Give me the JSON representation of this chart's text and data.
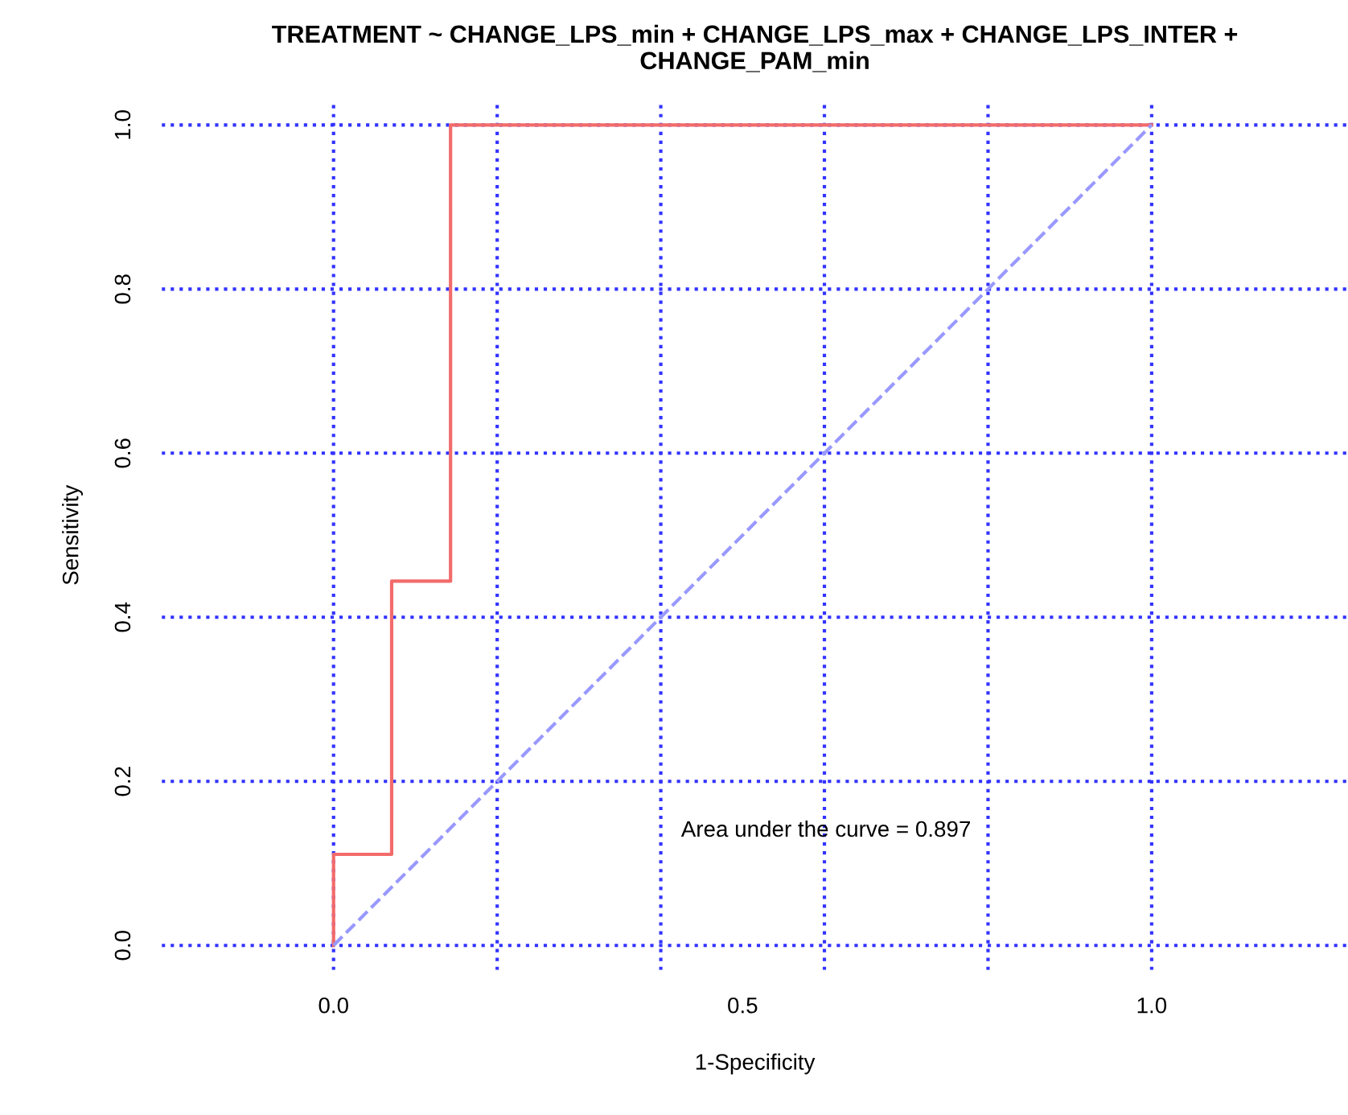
{
  "chart_data": {
    "type": "line",
    "title": "TREATMENT ~ CHANGE_LPS_min + CHANGE_LPS_max + CHANGE_LPS_INTER +\nCHANGE_PAM_min",
    "xlabel": "1-Specificity",
    "ylabel": "Sensitivity",
    "series": [
      {
        "x": [
          0,
          0,
          0.071,
          0.071,
          0.143,
          0.143,
          1
        ],
        "values": [
          0,
          0.111,
          0.111,
          0.444,
          0.444,
          1,
          1
        ],
        "color": "#f26b6b",
        "line_style": "solid"
      },
      {
        "x": [
          0,
          1
        ],
        "values": [
          0,
          1
        ],
        "color": "#9999ff",
        "line_style": "dashed"
      }
    ],
    "xlim": [
      -0.21,
      1.24
    ],
    "ylim": [
      -0.03,
      1.03
    ],
    "xticks": [
      {
        "value": 0,
        "label": "0.0"
      },
      0.5,
      {
        "value": 1,
        "label": "1.0"
      }
    ],
    "yticks": [
      {
        "value": 0,
        "label": "0.0"
      },
      0.2,
      0.4,
      0.6,
      0.8,
      {
        "value": 1,
        "label": "1.0"
      }
    ],
    "grid": "y",
    "marker": "none",
    "ref_lines": [
      {
        "axis": "x",
        "value": 0,
        "color": "#3333ff",
        "line_style": "dotted"
      },
      {
        "axis": "x",
        "value": 0.2,
        "color": "#3333ff",
        "line_style": "dotted"
      },
      {
        "axis": "x",
        "value": 0.4,
        "color": "#3333ff",
        "line_style": "dotted"
      },
      {
        "axis": "x",
        "value": 0.6,
        "color": "#3333ff",
        "line_style": "dotted"
      },
      {
        "axis": "x",
        "value": 0.8,
        "color": "#3333ff",
        "line_style": "dotted"
      },
      {
        "axis": "x",
        "value": 1,
        "color": "#3333ff",
        "line_style": "dotted"
      }
    ],
    "annotations": [
      "Area under the curve = 0.897"
    ]
  }
}
